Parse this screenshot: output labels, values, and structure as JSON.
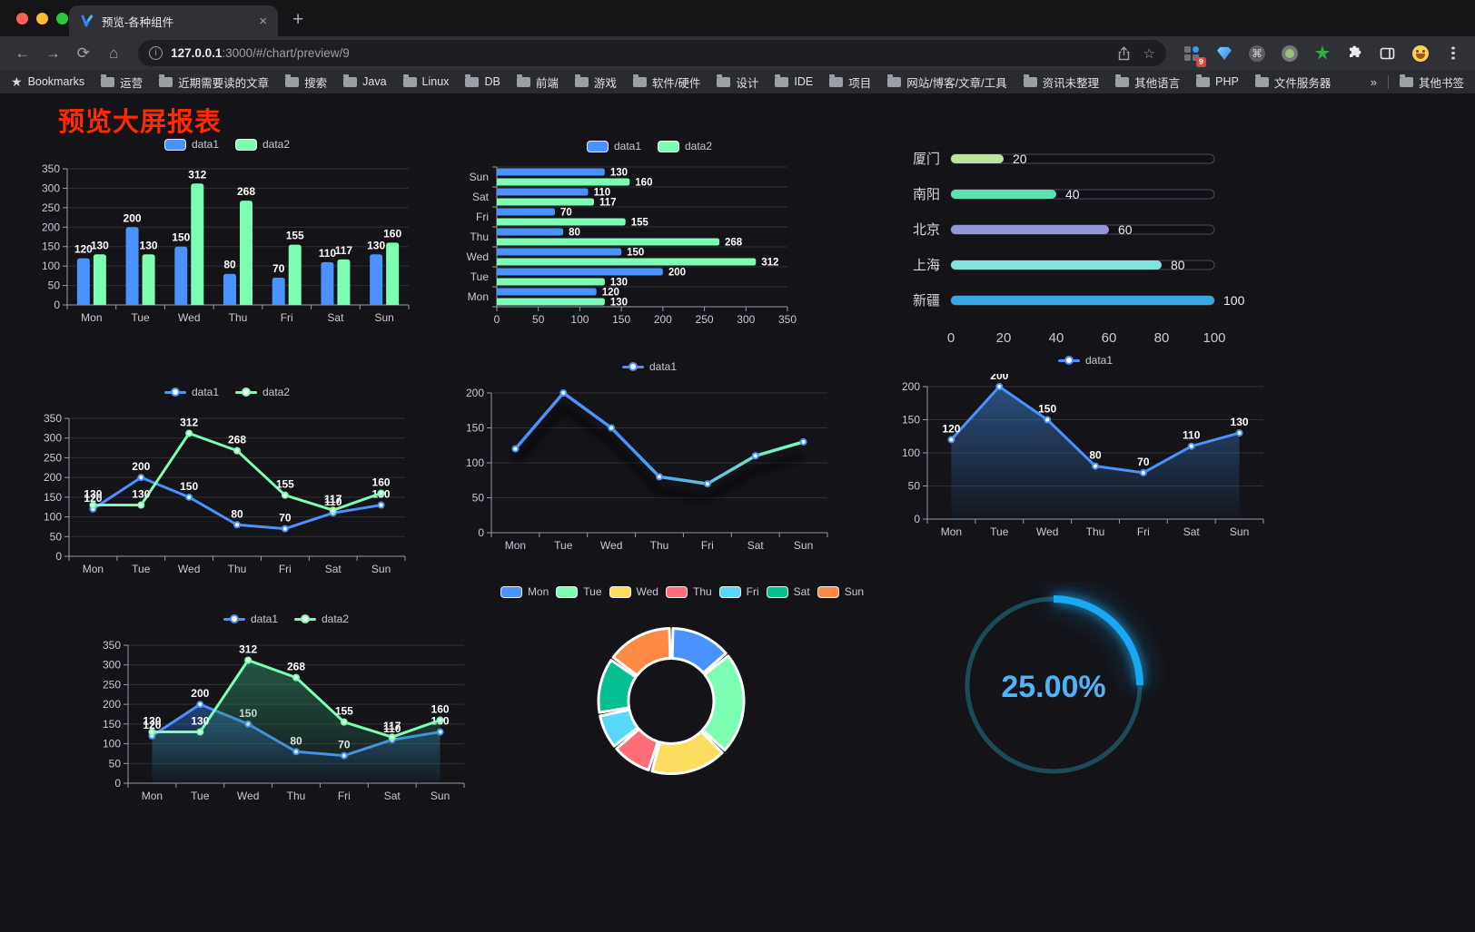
{
  "browser": {
    "tab_title": "预览-各种组件",
    "url_host": "127.0.0.1",
    "url_rest": ":3000/#/chart/preview/9",
    "extension_badge": "9",
    "bookmarks_label": "Bookmarks",
    "bookmark_folders": [
      "运营",
      "近期需要读的文章",
      "搜索",
      "Java",
      "Linux",
      "DB",
      "前端",
      "游戏",
      "软件/硬件",
      "设计",
      "IDE",
      "项目",
      "网站/博客/文章/工具",
      "资讯未整理",
      "其他语言",
      "PHP",
      "文件服务器"
    ],
    "overflow_chevron": "»",
    "other_bookmarks": "其他书签"
  },
  "page": {
    "title": "预览大屏报表",
    "title_color": "#ff2a00",
    "background": "#131318"
  },
  "chart_data": [
    {
      "id": "grouped-bar",
      "type": "bar",
      "categories": [
        "Mon",
        "Tue",
        "Wed",
        "Thu",
        "Fri",
        "Sat",
        "Sun"
      ],
      "series": [
        {
          "name": "data1",
          "color": "#4992ff",
          "values": [
            120,
            200,
            150,
            80,
            70,
            110,
            130
          ]
        },
        {
          "name": "data2",
          "color": "#7cffb2",
          "values": [
            130,
            130,
            312,
            268,
            155,
            117,
            160
          ]
        }
      ],
      "ylim": [
        0,
        350
      ],
      "ystep": 50,
      "grid": true,
      "legend_position": "top"
    },
    {
      "id": "horizontal-bar",
      "type": "hbar",
      "categories": [
        "Mon",
        "Tue",
        "Wed",
        "Thu",
        "Fri",
        "Sat",
        "Sun"
      ],
      "series": [
        {
          "name": "data1",
          "color": "#4992ff",
          "values": [
            120,
            200,
            150,
            80,
            70,
            110,
            130
          ]
        },
        {
          "name": "data2",
          "color": "#7cffb2",
          "values": [
            130,
            130,
            312,
            268,
            155,
            117,
            160
          ]
        }
      ],
      "xlim": [
        0,
        350
      ],
      "xstep": 50,
      "grid": true,
      "legend_position": "top"
    },
    {
      "id": "city-progress",
      "type": "progress",
      "max": 100,
      "ticks": [
        0,
        20,
        40,
        60,
        80,
        100
      ],
      "items": [
        {
          "label": "厦门",
          "value": 20,
          "color": "#bce49d"
        },
        {
          "label": "南阳",
          "value": 40,
          "color": "#5fe0b1"
        },
        {
          "label": "北京",
          "value": 60,
          "color": "#9496db"
        },
        {
          "label": "上海",
          "value": 80,
          "color": "#82e6de"
        },
        {
          "label": "新疆",
          "value": 100,
          "color": "#36a7e0"
        }
      ]
    },
    {
      "id": "line-two-series",
      "type": "line",
      "categories": [
        "Mon",
        "Tue",
        "Wed",
        "Thu",
        "Fri",
        "Sat",
        "Sun"
      ],
      "series": [
        {
          "name": "data1",
          "color": "#4992ff",
          "values": [
            120,
            200,
            150,
            80,
            70,
            110,
            130
          ]
        },
        {
          "name": "data2",
          "color": "#7cffb2",
          "values": [
            130,
            130,
            312,
            268,
            155,
            117,
            160
          ]
        }
      ],
      "ylim": [
        0,
        350
      ],
      "ystep": 50,
      "show_labels": true,
      "grid": true,
      "legend_position": "top"
    },
    {
      "id": "line-gradient",
      "type": "line-gradient",
      "categories": [
        "Mon",
        "Tue",
        "Wed",
        "Thu",
        "Fri",
        "Sat",
        "Sun"
      ],
      "series": [
        {
          "name": "data1",
          "values": [
            120,
            200,
            150,
            80,
            70,
            110,
            130
          ]
        }
      ],
      "gradient": [
        "#4992ff",
        "#7cffb2"
      ],
      "ylim": [
        0,
        200
      ],
      "ystep": 50,
      "show_labels": false,
      "grid": true,
      "legend_position": "top"
    },
    {
      "id": "area-single",
      "type": "area",
      "categories": [
        "Mon",
        "Tue",
        "Wed",
        "Thu",
        "Fri",
        "Sat",
        "Sun"
      ],
      "series": [
        {
          "name": "data1",
          "color": "#4992ff",
          "area_color": "#3c7fd0",
          "values": [
            120,
            200,
            150,
            80,
            70,
            110,
            130
          ]
        }
      ],
      "ylim": [
        0,
        200
      ],
      "ystep": 50,
      "show_labels": true,
      "grid": true,
      "legend_position": "top"
    },
    {
      "id": "line-area-two",
      "type": "line-area",
      "categories": [
        "Mon",
        "Tue",
        "Wed",
        "Thu",
        "Fri",
        "Sat",
        "Sun"
      ],
      "series": [
        {
          "name": "data1",
          "color": "#4992ff",
          "area_color": "#2e6bc0",
          "values": [
            120,
            200,
            150,
            80,
            70,
            110,
            130
          ]
        },
        {
          "name": "data2",
          "color": "#7cffb2",
          "area_color": "#2f8f68",
          "values": [
            130,
            130,
            312,
            268,
            155,
            117,
            160
          ]
        }
      ],
      "ylim": [
        0,
        350
      ],
      "ystep": 50,
      "show_labels": true,
      "grid": true,
      "legend_position": "top"
    },
    {
      "id": "weekday-donut",
      "type": "pie-donut",
      "labels": [
        "Mon",
        "Tue",
        "Wed",
        "Thu",
        "Fri",
        "Sat",
        "Sun"
      ],
      "values": [
        120,
        200,
        150,
        80,
        70,
        110,
        130
      ],
      "colors": [
        "#4992ff",
        "#7cffb2",
        "#fddd60",
        "#ff6e76",
        "#58d9f9",
        "#05c091",
        "#ff8a45"
      ],
      "legend_position": "top"
    },
    {
      "id": "percent-gauge",
      "type": "gauge",
      "value": 25,
      "max": 100,
      "label": "25.00%",
      "track_color": "#1d4c59",
      "arc_color": "#1aa8f3",
      "text_color": "#4fb3f8"
    }
  ]
}
